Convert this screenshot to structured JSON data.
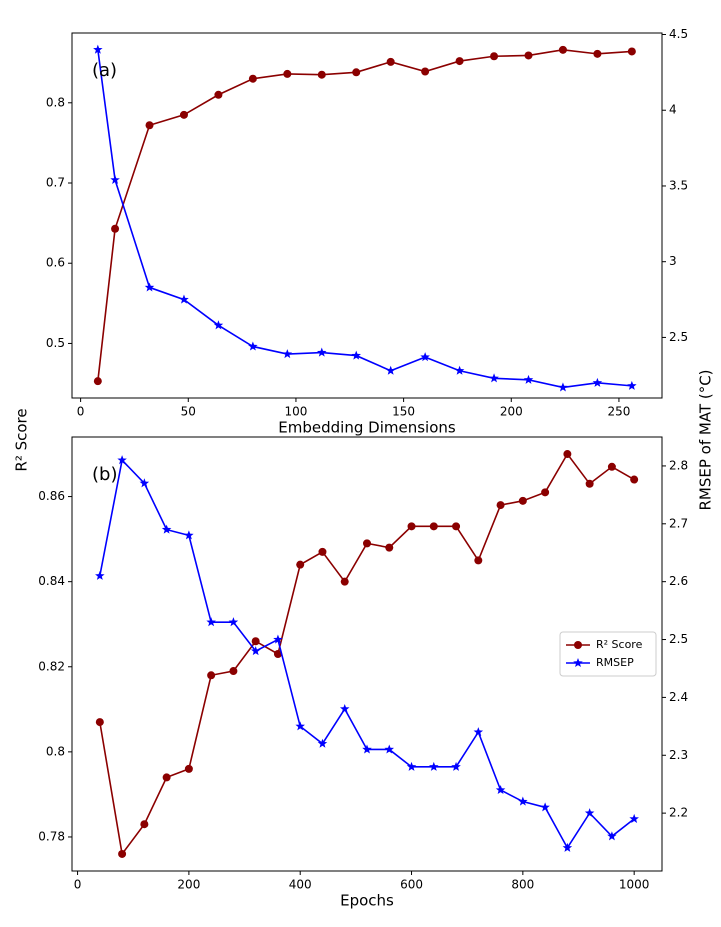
{
  "ylabel": "R² Score",
  "y2label": "RMSEP of MAT (°C)",
  "chart_data": [
    {
      "type": "line",
      "label": "(a)",
      "xlabel": "Embedding Dimensions",
      "x": [
        8,
        16,
        32,
        48,
        64,
        80,
        96,
        112,
        128,
        144,
        160,
        176,
        192,
        208,
        224,
        240,
        256
      ],
      "xlim": [
        -4,
        270
      ],
      "xticks": [
        0,
        50,
        100,
        150,
        200,
        250
      ],
      "ylim": [
        0.432,
        0.887
      ],
      "yticks": [
        0.5,
        0.6,
        0.7,
        0.8
      ],
      "y2lim": [
        2.1,
        4.51
      ],
      "y2ticks": [
        2.5,
        3.0,
        3.5,
        4.0,
        4.5
      ],
      "legend": false,
      "series": [
        {
          "color": "#8b0000",
          "marker": "o",
          "values": [
            0.453,
            0.643,
            0.772,
            0.785,
            0.81,
            0.83,
            0.836,
            0.835,
            0.838,
            0.851,
            0.839,
            0.852,
            0.858,
            0.859,
            0.866,
            0.861,
            0.864
          ]
        },
        {
          "color": "#0000ff",
          "marker": "*",
          "axis": "y2",
          "values": [
            4.4,
            3.54,
            2.83,
            2.75,
            2.58,
            2.44,
            2.39,
            2.4,
            2.38,
            2.28,
            2.37,
            2.28,
            2.23,
            2.22,
            2.17,
            2.2,
            2.18
          ]
        }
      ]
    },
    {
      "type": "line",
      "label": "(b)",
      "xlabel": "Epochs",
      "x": [
        40,
        80,
        120,
        160,
        200,
        240,
        280,
        320,
        360,
        400,
        440,
        480,
        520,
        560,
        600,
        640,
        680,
        720,
        760,
        800,
        840,
        880,
        920,
        960,
        1000
      ],
      "xlim": [
        -10,
        1050
      ],
      "xticks": [
        0,
        200,
        400,
        600,
        800,
        1000
      ],
      "ylim": [
        0.772,
        0.874
      ],
      "yticks": [
        0.78,
        0.8,
        0.82,
        0.84,
        0.86
      ],
      "y2lim": [
        2.1,
        2.85
      ],
      "y2ticks": [
        2.2,
        2.3,
        2.4,
        2.5,
        2.6,
        2.7,
        2.8
      ],
      "legend": "center right",
      "series": [
        {
          "name": "R² Score",
          "color": "#8b0000",
          "marker": "o",
          "values": [
            0.807,
            0.776,
            0.783,
            0.794,
            0.796,
            0.818,
            0.819,
            0.826,
            0.823,
            0.844,
            0.847,
            0.84,
            0.849,
            0.848,
            0.853,
            0.853,
            0.853,
            0.845,
            0.858,
            0.859,
            0.861,
            0.87,
            0.863,
            0.867,
            0.864
          ]
        },
        {
          "name": "RMSEP",
          "color": "#0000ff",
          "marker": "*",
          "axis": "y2",
          "values": [
            2.61,
            2.81,
            2.77,
            2.69,
            2.68,
            2.53,
            2.53,
            2.48,
            2.5,
            2.35,
            2.32,
            2.38,
            2.31,
            2.31,
            2.28,
            2.28,
            2.28,
            2.34,
            2.24,
            2.22,
            2.21,
            2.14,
            2.2,
            2.16,
            2.19
          ]
        }
      ]
    }
  ]
}
